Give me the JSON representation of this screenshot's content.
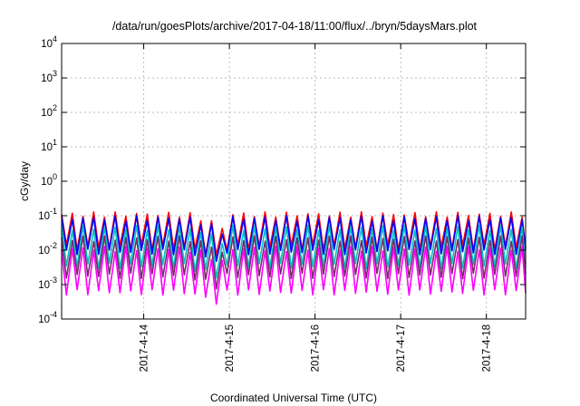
{
  "chart_data": {
    "type": "line",
    "title": "/data/run/goesPlots/archive/2017-04-18/11:00/flux/../bryn/5daysMars.plot",
    "xlabel": "Coordinated Universal Time (UTC)",
    "ylabel": "cGy/day",
    "yscale": "log",
    "ylim": [
      0.0001,
      10000
    ],
    "yticks": [
      {
        "value": 0.0001,
        "base": "10",
        "exp": "-4"
      },
      {
        "value": 0.001,
        "base": "10",
        "exp": "-3"
      },
      {
        "value": 0.01,
        "base": "10",
        "exp": "-2"
      },
      {
        "value": 0.1,
        "base": "10",
        "exp": "-1"
      },
      {
        "value": 1,
        "base": "10",
        "exp": "0"
      },
      {
        "value": 10,
        "base": "10",
        "exp": "1"
      },
      {
        "value": 100,
        "base": "10",
        "exp": "2"
      },
      {
        "value": 1000,
        "base": "10",
        "exp": "3"
      },
      {
        "value": 10000,
        "base": "10",
        "exp": "4"
      }
    ],
    "xlim": [
      "2017-04-13T01:00",
      "2017-04-18T11:00"
    ],
    "xticks": [
      {
        "value": "2017-04-14T00:00",
        "label": "2017-4-14"
      },
      {
        "value": "2017-04-15T00:00",
        "label": "2017-4-15"
      },
      {
        "value": "2017-04-16T00:00",
        "label": "2017-4-16"
      },
      {
        "value": "2017-04-17T00:00",
        "label": "2017-4-17"
      },
      {
        "value": "2017-04-18T00:00",
        "label": "2017-4-18"
      }
    ],
    "grid": true,
    "oscillation_period_hours": 3,
    "series": [
      {
        "color": "#ff0000",
        "peak": 0.11,
        "trough": 0.012
      },
      {
        "color": "#0000ff",
        "peak": 0.085,
        "trough": 0.009
      },
      {
        "color": "#00c0c0",
        "peak": 0.045,
        "trough": 0.0035
      },
      {
        "color": "#7a2a6a",
        "peak": 0.022,
        "trough": 0.0018
      },
      {
        "color": "#ff00ff",
        "peak": 0.011,
        "trough": 0.0006
      }
    ],
    "events": [
      {
        "label": "",
        "start": "2017-04-14T12:00",
        "end": "2017-04-14T23:00",
        "trough_factor": 0.35
      }
    ]
  }
}
